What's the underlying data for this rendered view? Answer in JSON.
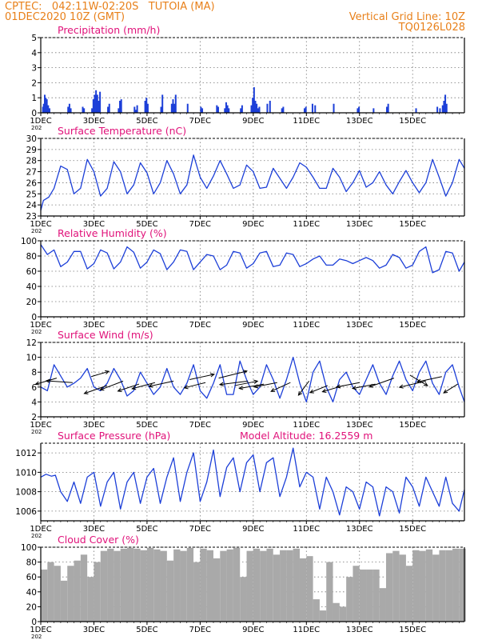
{
  "header": {
    "line1_left": "CPTEC:   042:11W-02:20S   TUTOIA (MA)",
    "line2_left": "01DEC2020 10Z (GMT)",
    "line1_right": "Vertical Grid Line: 10Z",
    "line2_right": "TQ0126L028"
  },
  "colors": {
    "header": "#e8801a",
    "title": "#e0127a",
    "series": "#1c3fd8",
    "bars": "#1c3fd8",
    "cloud": "#a9a9a9",
    "arrow": "#000000"
  },
  "axis": {
    "x_ticks": [
      "1DEC",
      "3DEC",
      "5DEC",
      "7DEC",
      "9DEC",
      "11DEC",
      "13DEC",
      "15DEC"
    ],
    "year_stub": "202"
  },
  "chart_data": [
    {
      "type": "bar",
      "title": "Precipitation  (mm/h)",
      "ylim": [
        0,
        5
      ],
      "yticks": [
        0,
        1,
        2,
        3,
        4,
        5
      ],
      "x_unit": "days since 01DEC 10Z",
      "x": [
        0.05,
        0.08,
        0.12,
        0.16,
        0.2,
        0.25,
        0.3,
        1.0,
        1.05,
        1.1,
        1.55,
        1.6,
        1.9,
        1.95,
        2.0,
        2.05,
        2.1,
        2.15,
        2.2,
        2.5,
        2.55,
        2.9,
        2.95,
        3.0,
        3.5,
        3.55,
        3.6,
        3.9,
        3.95,
        4.0,
        4.5,
        4.55,
        4.9,
        4.95,
        5.0,
        5.05,
        5.5,
        6.0,
        6.05,
        6.6,
        6.65,
        6.9,
        6.95,
        7.0,
        7.05,
        7.5,
        7.55,
        7.9,
        7.95,
        8.0,
        8.05,
        8.1,
        8.15,
        8.2,
        8.5,
        8.6,
        9.05,
        9.1,
        9.9,
        9.95,
        10.2,
        10.3,
        11.0,
        11.9,
        11.95,
        12.5,
        13.0,
        13.05,
        14.1,
        14.9,
        15.0,
        15.1,
        15.15,
        15.2,
        15.25
      ],
      "values": [
        0.4,
        0.6,
        1.2,
        1.0,
        0.9,
        0.5,
        0.3,
        0.4,
        0.6,
        0.3,
        0.4,
        0.3,
        0.3,
        0.9,
        1.2,
        1.5,
        1.2,
        0.8,
        1.4,
        0.4,
        0.6,
        0.3,
        0.8,
        0.9,
        0.4,
        0.2,
        0.5,
        0.8,
        1.0,
        0.6,
        0.4,
        1.2,
        0.6,
        0.9,
        0.6,
        1.2,
        0.6,
        0.4,
        0.3,
        0.5,
        0.4,
        0.3,
        0.7,
        0.5,
        0.3,
        0.3,
        0.5,
        0.5,
        1.0,
        1.7,
        0.8,
        0.6,
        0.3,
        0.4,
        0.6,
        0.8,
        0.3,
        0.4,
        0.3,
        0.4,
        0.6,
        0.5,
        0.6,
        0.3,
        0.4,
        0.3,
        0.4,
        0.6,
        0.3,
        0.4,
        0.3,
        0.5,
        0.8,
        1.2,
        0.6
      ]
    },
    {
      "type": "line",
      "title": "Surface Temperature  (nC)",
      "ylim": [
        23,
        30
      ],
      "yticks": [
        23,
        24,
        25,
        26,
        27,
        28,
        29,
        30
      ],
      "x": [
        0,
        0.1,
        0.3,
        0.5,
        0.75,
        1.0,
        1.25,
        1.5,
        1.75,
        2.0,
        2.25,
        2.5,
        2.75,
        3.0,
        3.25,
        3.5,
        3.75,
        4.0,
        4.25,
        4.5,
        4.75,
        5.0,
        5.25,
        5.5,
        5.75,
        6.0,
        6.25,
        6.5,
        6.75,
        7.0,
        7.25,
        7.5,
        7.75,
        8.0,
        8.25,
        8.5,
        8.75,
        9.0,
        9.25,
        9.5,
        9.75,
        10.0,
        10.25,
        10.5,
        10.75,
        11.0,
        11.25,
        11.5,
        11.75,
        12.0,
        12.25,
        12.5,
        12.75,
        13.0,
        13.25,
        13.5,
        13.75,
        14.0,
        14.25,
        14.5,
        14.75,
        15.0,
        15.25,
        15.5,
        15.75,
        15.95
      ],
      "values": [
        23.5,
        24.4,
        24.7,
        25.5,
        27.5,
        27.2,
        25.0,
        25.5,
        28.1,
        27.0,
        24.8,
        25.5,
        27.9,
        27.0,
        25.0,
        25.8,
        27.8,
        26.9,
        25.0,
        26.0,
        28.0,
        26.8,
        25.0,
        25.8,
        28.5,
        26.5,
        25.5,
        26.6,
        28.0,
        26.8,
        25.5,
        25.8,
        27.6,
        27.0,
        25.5,
        25.6,
        27.3,
        26.4,
        25.5,
        26.5,
        27.8,
        27.4,
        26.5,
        25.5,
        25.5,
        27.3,
        26.5,
        25.2,
        26.0,
        27.1,
        25.6,
        26.0,
        27.0,
        25.8,
        25.0,
        26.1,
        27.1,
        26.0,
        25.1,
        26.0,
        28.1,
        26.5,
        24.8,
        26.0,
        28.1,
        27.3
      ]
    },
    {
      "type": "line",
      "title": "Relative Humidity  (%)",
      "ylim": [
        0,
        100
      ],
      "yticks": [
        0,
        20,
        40,
        60,
        80,
        100
      ],
      "x": [
        0,
        0.25,
        0.5,
        0.75,
        1.0,
        1.25,
        1.5,
        1.75,
        2.0,
        2.25,
        2.5,
        2.75,
        3.0,
        3.25,
        3.5,
        3.75,
        4.0,
        4.25,
        4.5,
        4.75,
        5.0,
        5.25,
        5.5,
        5.75,
        6.0,
        6.25,
        6.5,
        6.75,
        7.0,
        7.25,
        7.5,
        7.75,
        8.0,
        8.25,
        8.5,
        8.75,
        9.0,
        9.25,
        9.5,
        9.75,
        10.0,
        10.25,
        10.5,
        10.75,
        11.0,
        11.25,
        11.5,
        11.75,
        12.0,
        12.25,
        12.5,
        12.75,
        13.0,
        13.25,
        13.5,
        13.75,
        14.0,
        14.25,
        14.5,
        14.75,
        15.0,
        15.25,
        15.5,
        15.75,
        15.95
      ],
      "values": [
        95,
        82,
        88,
        66,
        72,
        86,
        86,
        63,
        70,
        88,
        84,
        63,
        72,
        92,
        85,
        64,
        72,
        88,
        83,
        62,
        72,
        88,
        86,
        62,
        72,
        82,
        80,
        62,
        68,
        86,
        84,
        64,
        70,
        84,
        86,
        66,
        68,
        84,
        82,
        66,
        70,
        76,
        80,
        68,
        68,
        76,
        74,
        70,
        74,
        78,
        74,
        64,
        68,
        82,
        78,
        64,
        68,
        86,
        92,
        58,
        62,
        86,
        84,
        60,
        72
      ]
    },
    {
      "type": "line",
      "title": "Surface Wind  (m/s)",
      "ylim": [
        2,
        12
      ],
      "yticks": [
        2,
        4,
        6,
        8,
        10,
        12
      ],
      "x": [
        0,
        0.25,
        0.5,
        0.75,
        1.0,
        1.25,
        1.5,
        1.75,
        2.0,
        2.25,
        2.5,
        2.75,
        3.0,
        3.25,
        3.5,
        3.75,
        4.0,
        4.25,
        4.5,
        4.75,
        5.0,
        5.25,
        5.5,
        5.75,
        6.0,
        6.25,
        6.5,
        6.75,
        7.0,
        7.25,
        7.5,
        7.75,
        8.0,
        8.25,
        8.5,
        8.75,
        9.0,
        9.25,
        9.5,
        9.75,
        10.0,
        10.25,
        10.5,
        10.75,
        11.0,
        11.25,
        11.5,
        11.75,
        12.0,
        12.25,
        12.5,
        12.75,
        13.0,
        13.25,
        13.5,
        13.75,
        14.0,
        14.25,
        14.5,
        14.75,
        15.0,
        15.25,
        15.5,
        15.75,
        15.95
      ],
      "values": [
        6.0,
        5.5,
        9.0,
        7.5,
        6.0,
        6.5,
        7.2,
        8.5,
        6.0,
        5.5,
        6.5,
        8.5,
        7.0,
        4.8,
        5.5,
        8.0,
        6.5,
        5.0,
        6.0,
        8.5,
        6.0,
        5.0,
        6.5,
        9.0,
        5.5,
        4.5,
        6.5,
        9.0,
        5.0,
        5.0,
        9.5,
        7.0,
        5.0,
        6.0,
        9.0,
        7.0,
        4.5,
        7.0,
        10.0,
        6.5,
        4.0,
        8.0,
        9.5,
        6.0,
        4.0,
        7.0,
        8.0,
        6.0,
        5.0,
        7.0,
        9.0,
        6.5,
        5.0,
        7.5,
        9.5,
        7.0,
        5.5,
        8.0,
        9.5,
        6.5,
        5.0,
        8.0,
        9.0,
        6.0,
        4.0
      ],
      "vectors": [
        {
          "x": 0.6,
          "y": 7.2,
          "u": -1.2,
          "v": -0.7
        },
        {
          "x": 1.2,
          "y": 6.6,
          "u": -1.5,
          "v": 0.2
        },
        {
          "x": 1.9,
          "y": 7.4,
          "u": 1.0,
          "v": 0.6
        },
        {
          "x": 2.5,
          "y": 6.2,
          "u": -1.3,
          "v": -0.9
        },
        {
          "x": 3.1,
          "y": 6.8,
          "u": -1.3,
          "v": -1.0
        },
        {
          "x": 3.7,
          "y": 6.4,
          "u": -1.2,
          "v": -0.8
        },
        {
          "x": 4.3,
          "y": 6.6,
          "u": -1.3,
          "v": -0.7
        },
        {
          "x": 5.0,
          "y": 6.8,
          "u": -1.4,
          "v": -0.6
        },
        {
          "x": 5.6,
          "y": 7.0,
          "u": 1.4,
          "v": 0.6
        },
        {
          "x": 6.2,
          "y": 6.6,
          "u": -1.2,
          "v": -0.6
        },
        {
          "x": 6.7,
          "y": 7.2,
          "u": 1.6,
          "v": 0.8
        },
        {
          "x": 7.3,
          "y": 6.2,
          "u": 1.3,
          "v": 0.5
        },
        {
          "x": 7.8,
          "y": 6.8,
          "u": -1.6,
          "v": -0.4
        },
        {
          "x": 8.4,
          "y": 6.4,
          "u": -1.4,
          "v": -0.5
        },
        {
          "x": 8.9,
          "y": 6.6,
          "u": -1.3,
          "v": -0.5
        },
        {
          "x": 9.4,
          "y": 6.6,
          "u": -1.1,
          "v": -1.0
        },
        {
          "x": 10.1,
          "y": 6.8,
          "u": -0.6,
          "v": -1.6
        },
        {
          "x": 10.8,
          "y": 6.2,
          "u": -1.0,
          "v": -0.8
        },
        {
          "x": 11.4,
          "y": 6.2,
          "u": -1.2,
          "v": -0.7
        },
        {
          "x": 12.0,
          "y": 6.6,
          "u": -1.3,
          "v": -0.5
        },
        {
          "x": 12.6,
          "y": 6.4,
          "u": -1.3,
          "v": -0.5
        },
        {
          "x": 13.3,
          "y": 7.2,
          "u": -1.4,
          "v": -1.0
        },
        {
          "x": 13.9,
          "y": 7.6,
          "u": 1.0,
          "v": -1.2
        },
        {
          "x": 14.5,
          "y": 6.8,
          "u": -1.5,
          "v": -0.7
        },
        {
          "x": 15.1,
          "y": 7.4,
          "u": -1.4,
          "v": -0.6
        },
        {
          "x": 15.7,
          "y": 6.4,
          "u": -0.8,
          "v": -1.0
        }
      ]
    },
    {
      "type": "line",
      "title": "Surface Pressure  (hPa)",
      "annotation": "Model Altitude: 16.2559  m",
      "ylim": [
        1005,
        1013
      ],
      "yticks": [
        1006,
        1008,
        1010,
        1012
      ],
      "x": [
        0,
        0.2,
        0.4,
        0.55,
        0.75,
        1.0,
        1.25,
        1.5,
        1.75,
        2.0,
        2.25,
        2.5,
        2.75,
        3.0,
        3.25,
        3.5,
        3.75,
        4.0,
        4.25,
        4.5,
        4.75,
        5.0,
        5.25,
        5.5,
        5.75,
        6.0,
        6.25,
        6.5,
        6.75,
        7.0,
        7.25,
        7.5,
        7.75,
        8.0,
        8.25,
        8.5,
        8.75,
        9.0,
        9.25,
        9.5,
        9.75,
        10.0,
        10.25,
        10.5,
        10.75,
        11.0,
        11.25,
        11.5,
        11.75,
        12.0,
        12.25,
        12.5,
        12.75,
        13.0,
        13.25,
        13.5,
        13.75,
        14.0,
        14.25,
        14.5,
        14.75,
        15.0,
        15.25,
        15.5,
        15.75,
        15.95
      ],
      "values": [
        1009.5,
        1009.8,
        1009.6,
        1009.7,
        1008.0,
        1007.0,
        1009.0,
        1006.8,
        1009.5,
        1010.0,
        1006.5,
        1009.0,
        1010.0,
        1006.2,
        1009.0,
        1010.0,
        1006.8,
        1009.5,
        1010.4,
        1006.8,
        1009.5,
        1011.5,
        1007.0,
        1010.0,
        1012.0,
        1007.0,
        1009.0,
        1012.3,
        1007.5,
        1010.5,
        1011.5,
        1008.0,
        1011.0,
        1011.8,
        1008.0,
        1011.0,
        1011.5,
        1007.5,
        1009.5,
        1012.5,
        1008.5,
        1010.0,
        1009.5,
        1006.2,
        1009.5,
        1008.0,
        1005.6,
        1008.5,
        1008.0,
        1006.2,
        1009.0,
        1008.5,
        1005.5,
        1008.5,
        1008.0,
        1005.8,
        1009.5,
        1008.5,
        1006.5,
        1009.5,
        1008.0,
        1006.5,
        1009.5,
        1006.8,
        1006.0,
        1008.2
      ]
    },
    {
      "type": "bar",
      "title": "Cloud Cover  (%)",
      "ylim": [
        0,
        100
      ],
      "yticks": [
        0,
        20,
        40,
        60,
        80,
        100
      ],
      "x": [
        0,
        0.25,
        0.5,
        0.75,
        1.0,
        1.25,
        1.5,
        1.75,
        2.0,
        2.25,
        2.5,
        2.75,
        3.0,
        3.25,
        3.5,
        3.75,
        4.0,
        4.25,
        4.5,
        4.75,
        5.0,
        5.25,
        5.5,
        5.75,
        6.0,
        6.25,
        6.5,
        6.75,
        7.0,
        7.25,
        7.5,
        7.75,
        8.0,
        8.25,
        8.5,
        8.75,
        9.0,
        9.25,
        9.5,
        9.75,
        10.0,
        10.25,
        10.5,
        10.75,
        11.0,
        11.25,
        11.5,
        11.75,
        12.0,
        12.25,
        12.5,
        12.75,
        13.0,
        13.25,
        13.5,
        13.75,
        14.0,
        14.25,
        14.5,
        14.75,
        15.0,
        15.25,
        15.5,
        15.75
      ],
      "values": [
        70,
        80,
        75,
        55,
        75,
        82,
        90,
        60,
        80,
        95,
        98,
        95,
        98,
        99,
        98,
        96,
        99,
        97,
        95,
        82,
        97,
        95,
        99,
        80,
        98,
        96,
        85,
        95,
        97,
        99,
        60,
        95,
        98,
        95,
        98,
        90,
        96,
        96,
        98,
        85,
        88,
        30,
        15,
        80,
        25,
        20,
        60,
        75,
        70,
        70,
        70,
        45,
        92,
        95,
        90,
        75,
        96,
        95,
        97,
        90,
        96,
        96,
        98,
        98
      ]
    }
  ]
}
